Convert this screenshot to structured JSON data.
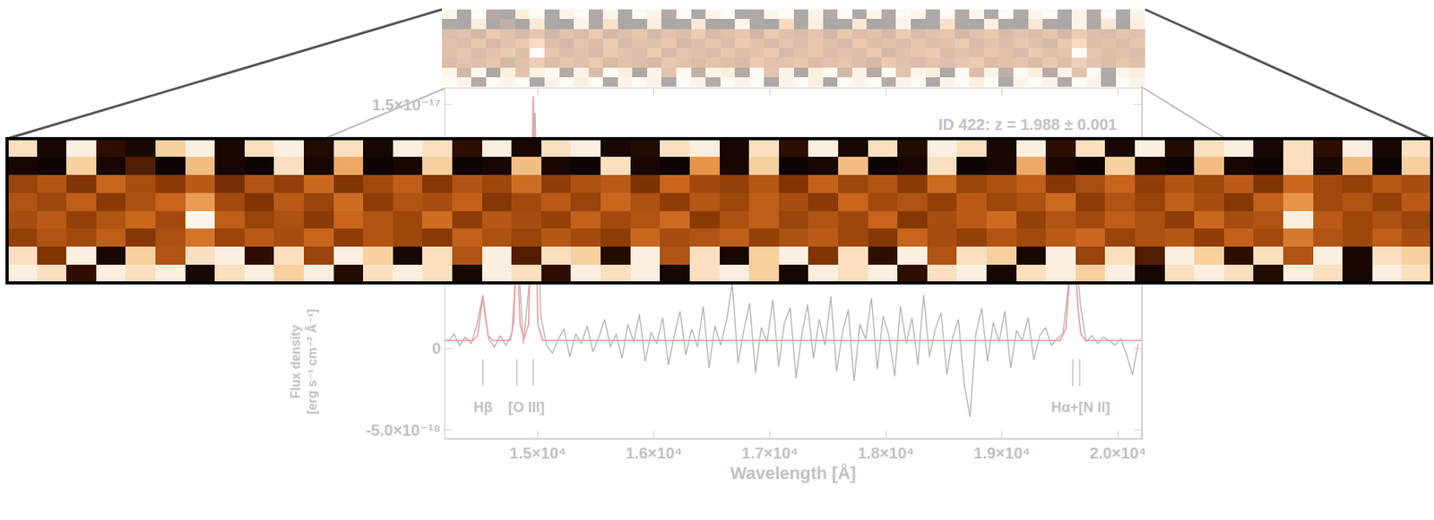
{
  "chart_data": [
    {
      "type": "line",
      "title": "ID 422: z = 1.988 ± 0.001",
      "xlabel": "Wavelength [Å]",
      "ylabel": "Flux density [erg s⁻¹ cm⁻² Å⁻¹]",
      "xlim": [
        14200,
        20200
      ],
      "xticks": [
        {
          "value": 15000,
          "label": "1.5×10⁴"
        },
        {
          "value": 16000,
          "label": "1.6×10⁴"
        },
        {
          "value": 17000,
          "label": "1.7×10⁴"
        },
        {
          "value": 18000,
          "label": "1.8×10⁴"
        },
        {
          "value": 19000,
          "label": "1.9×10⁴"
        },
        {
          "value": 20000,
          "label": "2.0×10⁴"
        }
      ],
      "ylim": [
        -5.5e-18,
        1.6e-17
      ],
      "yticks": [
        {
          "value": -5e-18,
          "label": "-5.0×10⁻¹⁸"
        },
        0,
        {
          "value": 1.5e-17,
          "label": "1.5×10⁻¹⁷"
        }
      ],
      "grid": false,
      "series": [
        {
          "color": "#b4b4b4",
          "line_style": "solid",
          "x": [
            14225,
            14275,
            14325,
            14375,
            14425,
            14475,
            14525,
            14575,
            14625,
            14675,
            14725,
            14775,
            14825,
            14875,
            14925,
            14975,
            15025,
            15075,
            15125,
            15175,
            15225,
            15275,
            15325,
            15375,
            15425,
            15475,
            15525,
            15575,
            15625,
            15675,
            15725,
            15775,
            15825,
            15875,
            15925,
            15975,
            16025,
            16075,
            16125,
            16175,
            16225,
            16275,
            16325,
            16375,
            16425,
            16475,
            16525,
            16575,
            16625,
            16675,
            16725,
            16775,
            16825,
            16875,
            16925,
            16975,
            17025,
            17075,
            17125,
            17175,
            17225,
            17275,
            17325,
            17375,
            17425,
            17475,
            17525,
            17575,
            17625,
            17675,
            17725,
            17775,
            17825,
            17875,
            17925,
            17975,
            18025,
            18075,
            18125,
            18175,
            18225,
            18275,
            18325,
            18375,
            18425,
            18475,
            18525,
            18575,
            18625,
            18675,
            18725,
            18775,
            18825,
            18875,
            18925,
            18975,
            19025,
            19075,
            19125,
            19175,
            19225,
            19275,
            19325,
            19375,
            19425,
            19475,
            19525,
            19575,
            19625,
            19675,
            19725,
            19775,
            19825,
            19875,
            19925,
            19975,
            20025,
            20075,
            20125,
            20175
          ],
          "values": [
            4e-19,
            9e-19,
            2e-19,
            7e-19,
            3e-19,
            1.5e-18,
            3.3e-18,
            6e-19,
            1e-19,
            8e-19,
            2e-19,
            9e-19,
            6.5e-18,
            3e-19,
            4e-18,
            1.45e-17,
            2e-18,
            2e-19,
            -3e-19,
            6e-19,
            1.2e-18,
            -5e-19,
            9e-19,
            3e-19,
            1.4e-18,
            -2e-19,
            7e-19,
            1.8e-18,
            1e-19,
            9e-19,
            -6e-19,
            1.5e-18,
            4e-19,
            2.1e-18,
            -8e-19,
            1e-18,
            3e-19,
            1.9e-18,
            -1e-18,
            8e-19,
            2.3e-18,
            -4e-19,
            1.2e-18,
            1e-19,
            2.6e-18,
            -1.2e-18,
            1.4e-18,
            2e-19,
            1.7e-18,
            4e-18,
            -9e-19,
            1.1e-18,
            2.8e-18,
            -1.5e-18,
            1.3e-18,
            4e-19,
            3e-18,
            -1.1e-18,
            1.6e-18,
            2.5e-18,
            -1.8e-18,
            9e-19,
            2.7e-18,
            -6e-19,
            1.8e-18,
            2e-19,
            3.2e-18,
            -1.4e-18,
            1e-18,
            2.4e-18,
            -2e-18,
            1.5e-18,
            6e-19,
            3.1e-18,
            -1.3e-18,
            2e-18,
            8e-19,
            -1.7e-18,
            2.6e-18,
            3e-19,
            1.9e-18,
            -1e-18,
            3.3e-18,
            -5e-19,
            1.2e-18,
            2.2e-18,
            -1.6e-18,
            7e-19,
            1.8e-18,
            -2.2e-18,
            -4.2e-18,
            9e-19,
            2.5e-18,
            -8e-19,
            1.6e-18,
            4e-19,
            2.3e-18,
            -1.2e-18,
            1.1e-18,
            5e-19,
            1.9e-18,
            -7e-19,
            8e-19,
            1.3e-18,
            2e-19,
            6e-19,
            9e-19,
            4e-18,
            7.2e-18,
            2.8e-18,
            4e-19,
            8e-19,
            3e-19,
            7e-19,
            5e-19,
            2e-19,
            6e-19,
            -4e-19,
            -1.6e-18,
            3e-19
          ]
        },
        {
          "color": "#f2a0a0",
          "line_style": "solid",
          "x": [
            14200,
            14440,
            14480,
            14505,
            14525,
            14545,
            14570,
            14610,
            14760,
            14790,
            14805,
            14818,
            14831,
            14846,
            14880,
            14920,
            14940,
            14960,
            14980,
            15000,
            15040,
            19500,
            19550,
            19575,
            19595,
            19612,
            19630,
            19655,
            19680,
            19720,
            20200
          ],
          "values": [
            5e-19,
            5e-19,
            8e-19,
            2e-18,
            3.2e-18,
            2e-18,
            8e-19,
            5e-19,
            5e-19,
            1.5e-18,
            4.5e-18,
            6.5e-18,
            4.5e-18,
            1.5e-18,
            6e-19,
            1.5e-18,
            8e-18,
            1.55e-17,
            8e-18,
            1.5e-18,
            5e-19,
            5e-19,
            1.2e-18,
            3.5e-18,
            6.2e-18,
            7e-18,
            5.5e-18,
            2.5e-18,
            9e-19,
            5e-19,
            5e-19
          ]
        }
      ],
      "line_markers": [
        14525,
        14818,
        14960,
        19610,
        19670
      ],
      "annotations": [
        {
          "text": "Hβ",
          "x": 14525
        },
        {
          "text": "[O III]",
          "x": 14900
        },
        {
          "text": "Hα+[N II]",
          "x": 19680
        }
      ]
    },
    {
      "type": "heatmap",
      "tick_labels": false,
      "xlim": [
        14200,
        20200
      ],
      "color_range": [
        0,
        1
      ],
      "x": [
        14262.5,
        14387.5,
        14512.5,
        14637.5,
        14762.5,
        14887.5,
        15012.5,
        15137.5,
        15262.5,
        15387.5,
        15512.5,
        15637.5,
        15762.5,
        15887.5,
        16012.5,
        16137.5,
        16262.5,
        16387.5,
        16512.5,
        16637.5,
        16762.5,
        16887.5,
        17012.5,
        17137.5,
        17262.5,
        17387.5,
        17512.5,
        17637.5,
        17762.5,
        17887.5,
        18012.5,
        18137.5,
        18262.5,
        18387.5,
        18512.5,
        18637.5,
        18762.5,
        18887.5,
        19012.5,
        19137.5,
        19262.5,
        19387.5,
        19512.5,
        19637.5,
        19762.5,
        19887.5,
        20012.5,
        20137.5
      ],
      "cells": [
        [
          0.9,
          0.1,
          0.95,
          0.2,
          0.1,
          0.85,
          0.95,
          0.1,
          0.9,
          0.95,
          0.15,
          0.9,
          0.1,
          0.95,
          0.9,
          0.2,
          0.95,
          0.1,
          0.9,
          0.95,
          0.1,
          0.15,
          0.9,
          0.95,
          0.1,
          0.9,
          0.2,
          0.95,
          0.1,
          0.9,
          0.15,
          0.95,
          0.9,
          0.1,
          0.95,
          0.2,
          0.9,
          0.1,
          0.95,
          0.15,
          0.9,
          0.95,
          0.1,
          0.9,
          0.2,
          0.95,
          0.1,
          0.9
        ],
        [
          0.1,
          0.05,
          0.85,
          0.1,
          0.3,
          0.05,
          0.8,
          0.1,
          0.05,
          0.9,
          0.1,
          0.75,
          0.05,
          0.1,
          0.85,
          0.05,
          0.1,
          0.8,
          0.1,
          0.05,
          0.9,
          0.1,
          0.05,
          0.7,
          0.1,
          0.85,
          0.05,
          0.1,
          0.8,
          0.05,
          0.1,
          0.9,
          0.05,
          0.1,
          0.75,
          0.1,
          0.05,
          0.85,
          0.1,
          0.05,
          0.8,
          0.1,
          0.05,
          0.9,
          0.1,
          0.8,
          0.05,
          0.85
        ],
        [
          0.45,
          0.5,
          0.4,
          0.55,
          0.48,
          0.42,
          0.52,
          0.38,
          0.5,
          0.44,
          0.56,
          0.4,
          0.47,
          0.53,
          0.41,
          0.5,
          0.46,
          0.58,
          0.43,
          0.49,
          0.52,
          0.39,
          0.55,
          0.47,
          0.44,
          0.51,
          0.4,
          0.54,
          0.46,
          0.5,
          0.42,
          0.57,
          0.45,
          0.49,
          0.53,
          0.41,
          0.48,
          0.55,
          0.43,
          0.5,
          0.46,
          0.52,
          0.4,
          0.56,
          0.47,
          0.44,
          0.51,
          0.48
        ],
        [
          0.5,
          0.46,
          0.53,
          0.42,
          0.49,
          0.55,
          0.72,
          0.47,
          0.4,
          0.52,
          0.45,
          0.58,
          0.43,
          0.5,
          0.48,
          0.54,
          0.41,
          0.47,
          0.52,
          0.45,
          0.56,
          0.49,
          0.43,
          0.51,
          0.46,
          0.53,
          0.48,
          0.42,
          0.55,
          0.47,
          0.5,
          0.44,
          0.52,
          0.46,
          0.49,
          0.57,
          0.43,
          0.5,
          0.45,
          0.53,
          0.48,
          0.41,
          0.54,
          0.7,
          0.47,
          0.5,
          0.44,
          0.52
        ],
        [
          0.48,
          0.52,
          0.44,
          0.5,
          0.56,
          0.47,
          0.97,
          0.53,
          0.45,
          0.49,
          0.42,
          0.55,
          0.5,
          0.46,
          0.58,
          0.43,
          0.51,
          0.48,
          0.44,
          0.54,
          0.47,
          0.5,
          0.57,
          0.42,
          0.49,
          0.53,
          0.45,
          0.5,
          0.46,
          0.55,
          0.41,
          0.48,
          0.52,
          0.57,
          0.44,
          0.5,
          0.47,
          0.53,
          0.49,
          0.43,
          0.56,
          0.48,
          0.5,
          0.95,
          0.52,
          0.46,
          0.49,
          0.45
        ],
        [
          0.44,
          0.5,
          0.47,
          0.53,
          0.41,
          0.49,
          0.6,
          0.45,
          0.52,
          0.48,
          0.55,
          0.43,
          0.5,
          0.46,
          0.42,
          0.54,
          0.49,
          0.45,
          0.51,
          0.47,
          0.43,
          0.56,
          0.48,
          0.5,
          0.53,
          0.44,
          0.49,
          0.52,
          0.46,
          0.41,
          0.55,
          0.48,
          0.44,
          0.5,
          0.47,
          0.52,
          0.56,
          0.45,
          0.49,
          0.51,
          0.43,
          0.54,
          0.47,
          0.62,
          0.5,
          0.46,
          0.53,
          0.48
        ],
        [
          0.9,
          0.4,
          0.95,
          0.1,
          0.85,
          0.5,
          0.9,
          0.95,
          0.2,
          0.9,
          0.45,
          0.95,
          0.85,
          0.1,
          0.9,
          0.5,
          0.95,
          0.3,
          0.9,
          0.85,
          0.15,
          0.95,
          0.5,
          0.9,
          0.1,
          0.85,
          0.95,
          0.4,
          0.9,
          0.2,
          0.95,
          0.5,
          0.9,
          0.85,
          0.1,
          0.95,
          0.45,
          0.9,
          0.3,
          0.95,
          0.85,
          0.2,
          0.9,
          0.5,
          0.95,
          0.1,
          0.9,
          0.85
        ],
        [
          0.95,
          0.9,
          0.2,
          0.95,
          0.9,
          0.95,
          0.1,
          0.9,
          0.95,
          0.85,
          0.95,
          0.15,
          0.9,
          0.95,
          0.9,
          0.1,
          0.95,
          0.9,
          0.2,
          0.95,
          0.9,
          0.95,
          0.1,
          0.9,
          0.95,
          0.85,
          0.1,
          0.95,
          0.9,
          0.95,
          0.2,
          0.9,
          0.95,
          0.1,
          0.9,
          0.95,
          0.85,
          0.95,
          0.1,
          0.9,
          0.95,
          0.9,
          0.15,
          0.95,
          0.9,
          0.1,
          0.95,
          0.9
        ]
      ]
    }
  ]
}
